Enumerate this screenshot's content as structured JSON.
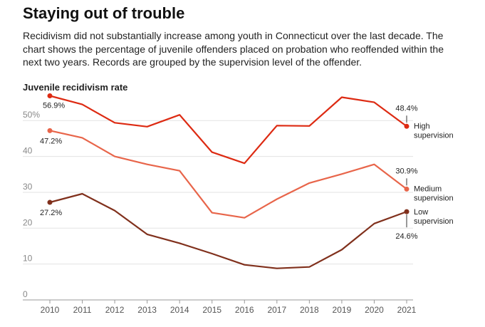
{
  "header": {
    "title": "Staying out of trouble",
    "subtitle": "Recidivism did not substantially increase among youth in Connecticut over the last decade. The chart shows the percentage of juvenile offenders placed on probation who reoffended within the next two years. Records are grouped by the supervision level of the offender."
  },
  "chart_data": {
    "type": "line",
    "title": "Juvenile recidivism rate",
    "xlabel": "",
    "ylabel": "",
    "x": [
      2010,
      2011,
      2012,
      2013,
      2014,
      2015,
      2016,
      2017,
      2018,
      2019,
      2020,
      2021
    ],
    "ylim": [
      0,
      57
    ],
    "yticks": [
      0,
      10,
      20,
      30,
      40,
      50
    ],
    "ytick_labels": [
      "0",
      "10",
      "20",
      "30",
      "40",
      "50%"
    ],
    "grid": true,
    "series": [
      {
        "name": "High supervision",
        "label_lines": [
          "High",
          "supervision"
        ],
        "color": "#dd2a12",
        "values": [
          56.9,
          54.5,
          49.4,
          48.3,
          51.6,
          41.2,
          38.1,
          48.6,
          48.5,
          56.5,
          55.1,
          48.4
        ],
        "start_label": "56.9%",
        "end_label": "48.4%"
      },
      {
        "name": "Medium supervision",
        "label_lines": [
          "Medium",
          "supervision"
        ],
        "color": "#e8654a",
        "values": [
          47.2,
          45.2,
          40.0,
          37.8,
          36.0,
          24.3,
          22.9,
          28.1,
          32.6,
          35.1,
          37.8,
          30.9
        ],
        "start_label": "47.2%",
        "end_label": "30.9%"
      },
      {
        "name": "Low supervision",
        "label_lines": [
          "Low",
          "supervision"
        ],
        "color": "#80301c",
        "values": [
          27.2,
          29.6,
          24.9,
          18.3,
          15.8,
          12.9,
          9.8,
          8.8,
          9.2,
          14.0,
          21.3,
          24.6
        ],
        "start_label": "27.2%",
        "end_label": "24.6%"
      }
    ]
  }
}
